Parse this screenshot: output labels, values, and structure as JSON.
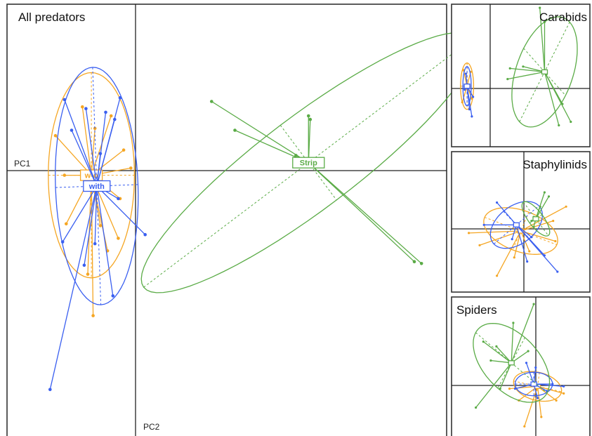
{
  "colors": {
    "Strip": "#5aab46",
    "with": "#3a5ff0",
    "w-o": "#f5a623",
    "frame": "#333333",
    "axis": "#222222"
  },
  "panels": [
    {
      "name": "All predators",
      "title": "All predators",
      "xlabel": "PC1",
      "ylabel": "PC2"
    },
    {
      "name": "Carabids",
      "title": "Carabids",
      "xlabel": "",
      "ylabel": ""
    },
    {
      "name": "Staphylinids",
      "title": "Staphylinids",
      "xlabel": "",
      "ylabel": ""
    },
    {
      "name": "Spiders",
      "title": "Spiders",
      "xlabel": "",
      "ylabel": ""
    }
  ],
  "chart_data": [
    {
      "panel": "All predators",
      "type": "scatter",
      "subtype": "PCA group ordination (star plot with inertia ellipses)",
      "title": "All predators",
      "xlabel": "PC1",
      "ylabel": "PC2",
      "xlim": [
        -7.5,
        17
      ],
      "ylim": [
        -14.5,
        9.6
      ],
      "grid": false,
      "legend": "none (groups labelled at centroids)",
      "series": [
        {
          "name": "Strip",
          "label": "Strip",
          "color_key": "Strip",
          "centroid": [
            9.3,
            0.8
          ],
          "ellipse": {
            "rx": 11.5,
            "ry": 2.6,
            "angle": 37
          },
          "points": [
            [
              3.9,
              4.2
            ],
            [
              5.2,
              2.6
            ],
            [
              9.3,
              3.4
            ],
            [
              9.4,
              3.2
            ],
            [
              8.9,
              1.0
            ],
            [
              8.6,
              1.2
            ],
            [
              15.2,
              -4.7
            ],
            [
              15.6,
              -4.8
            ]
          ]
        },
        {
          "name": "with",
          "label": "with",
          "color_key": "with",
          "centroid": [
            -2.5,
            -0.5
          ],
          "ellipse": {
            "rx": 2.3,
            "ry": 6.6,
            "angle": 2
          },
          "points": [
            [
              -4.3,
              4.3
            ],
            [
              -3.9,
              2.6
            ],
            [
              -2.0,
              3.6
            ],
            [
              -1.2,
              4.4
            ],
            [
              -1.5,
              3.2
            ],
            [
              -2.3,
              1.3
            ],
            [
              -3.1,
              3.8
            ],
            [
              0.2,
              -3.2
            ],
            [
              -1.3,
              -1.2
            ],
            [
              -2.6,
              -3.7
            ],
            [
              -3.2,
              -4.9
            ],
            [
              -4.4,
              -3.6
            ],
            [
              -1.6,
              -6.6
            ],
            [
              -5.1,
              -11.8
            ]
          ]
        },
        {
          "name": "w-o",
          "label": "w-o",
          "color_key": "w-o",
          "centroid": [
            -2.8,
            0.1
          ],
          "ellipse": {
            "rx": 2.4,
            "ry": 5.7,
            "angle": 0
          },
          "points": [
            [
              -4.8,
              2.3
            ],
            [
              -3.3,
              3.9
            ],
            [
              -2.6,
              2.7
            ],
            [
              -1.7,
              3.4
            ],
            [
              -1.0,
              1.5
            ],
            [
              -4.3,
              0.1
            ],
            [
              -0.6,
              0.5
            ],
            [
              -1.2,
              -1.2
            ],
            [
              -2.3,
              -2.7
            ],
            [
              -4.2,
              -2.6
            ],
            [
              -3.0,
              -5.4
            ],
            [
              -1.3,
              -3.4
            ],
            [
              -2.7,
              -7.7
            ],
            [
              -1.9,
              -4.1
            ]
          ]
        }
      ]
    },
    {
      "panel": "Carabids",
      "type": "scatter",
      "subtype": "PCA group ordination (star plot with inertia ellipses)",
      "title": "Carabids",
      "xlim": [
        -2.8,
        8.8
      ],
      "ylim": [
        -3.0,
        5.0
      ],
      "grid": false,
      "series": [
        {
          "name": "Strip",
          "color_key": "Strip",
          "centroid": [
            5.0,
            1.2
          ],
          "ellipse": {
            "rx": 3.5,
            "ry": 2.2,
            "angle": 53
          },
          "points": [
            [
              5.0,
              4.0
            ],
            [
              4.6,
              4.8
            ],
            [
              2.1,
              1.4
            ],
            [
              1.9,
              0.8
            ],
            [
              3.2,
              1.5
            ],
            [
              6.5,
              -0.6
            ],
            [
              7.2,
              -1.6
            ],
            [
              6.2,
              -1.8
            ]
          ]
        },
        {
          "name": "with",
          "color_key": "with",
          "centroid": [
            -1.5,
            0.4
          ],
          "ellipse": {
            "rx": 0.35,
            "ry": 1.1,
            "angle": 0
          },
          "points": [
            [
              -1.6,
              1.1
            ],
            [
              -1.3,
              -0.9
            ],
            [
              -1.0,
              -0.2
            ],
            [
              -1.7,
              0.2
            ],
            [
              -1.1,
              -1.3
            ]
          ]
        },
        {
          "name": "w-o",
          "color_key": "w-o",
          "centroid": [
            -1.5,
            0.4
          ],
          "ellipse": {
            "rx": 0.55,
            "ry": 1.3,
            "angle": 0
          },
          "points": [
            [
              -1.8,
              1.3
            ],
            [
              -1.2,
              1.2
            ],
            [
              -1.1,
              -0.3
            ],
            [
              -1.9,
              -0.5
            ]
          ]
        }
      ]
    },
    {
      "panel": "Staphylinids",
      "type": "scatter",
      "subtype": "PCA group ordination (star plot with inertia ellipses)",
      "title": "Staphylinids",
      "xlim": [
        -3.3,
        3.1
      ],
      "ylim": [
        -3.3,
        3.6
      ],
      "grid": false,
      "series": [
        {
          "name": "Strip",
          "color_key": "Strip",
          "centroid": [
            0.6,
            0.3
          ],
          "ellipse": {
            "rx": 1.0,
            "ry": 0.35,
            "angle": -55
          },
          "points": [
            [
              1.0,
              1.6
            ],
            [
              1.2,
              1.4
            ],
            [
              0.8,
              0.9
            ],
            [
              0.4,
              0.2
            ],
            [
              0.5,
              -0.1
            ]
          ]
        },
        {
          "name": "with",
          "color_key": "with",
          "centroid": [
            -0.3,
            0.0
          ],
          "ellipse": {
            "rx": 1.4,
            "ry": 0.9,
            "angle": 42
          },
          "points": [
            [
              -1.2,
              1.1
            ],
            [
              -1.8,
              0.0
            ],
            [
              0.4,
              -0.6
            ],
            [
              1.0,
              -1.5
            ],
            [
              0.2,
              -1.8
            ],
            [
              -0.5,
              -0.7
            ],
            [
              1.6,
              -2.3
            ]
          ]
        },
        {
          "name": "w-o",
          "color_key": "w-o",
          "centroid": [
            -0.1,
            -0.3
          ],
          "ellipse": {
            "rx": 1.8,
            "ry": 1.0,
            "angle": -22
          },
          "points": [
            [
              -2.5,
              -0.4
            ],
            [
              2.0,
              0.9
            ],
            [
              1.4,
              0.2
            ],
            [
              0.3,
              -1.3
            ],
            [
              -0.4,
              -1.6
            ],
            [
              -1.2,
              -2.5
            ],
            [
              1.5,
              -0.8
            ],
            [
              -2.0,
              -1.0
            ]
          ]
        }
      ]
    },
    {
      "panel": "Spiders",
      "type": "scatter",
      "subtype": "PCA group ordination (star plot with inertia ellipses)",
      "title": "Spiders",
      "xlim": [
        -4.2,
        3.2
      ],
      "ylim": [
        -2.5,
        3.5
      ],
      "grid": false,
      "series": [
        {
          "name": "Strip",
          "color_key": "Strip",
          "centroid": [
            -1.0,
            0.7
          ],
          "ellipse": {
            "rx": 2.3,
            "ry": 1.3,
            "angle": -34
          },
          "points": [
            [
              -2.5,
              1.6
            ],
            [
              -2.1,
              0.8
            ],
            [
              -1.8,
              1.4
            ],
            [
              -0.9,
              2.4
            ],
            [
              0.2,
              3.2
            ],
            [
              -2.9,
              -1.2
            ],
            [
              -1.6,
              -0.4
            ],
            [
              -0.1,
              1.2
            ]
          ]
        },
        {
          "name": "with",
          "color_key": "with",
          "centroid": [
            0.2,
            -0.2
          ],
          "ellipse": {
            "rx": 1.0,
            "ry": 0.5,
            "angle": 0
          },
          "points": [
            [
              -0.2,
              0.7
            ],
            [
              0.3,
              0.5
            ],
            [
              1.2,
              -0.2
            ],
            [
              0.9,
              -0.5
            ],
            [
              -0.8,
              -0.4
            ],
            [
              0.4,
              -0.8
            ],
            [
              1.8,
              -0.3
            ]
          ]
        },
        {
          "name": "w-o",
          "color_key": "w-o",
          "centroid": [
            0.4,
            -0.3
          ],
          "ellipse": {
            "rx": 1.3,
            "ry": 0.6,
            "angle": -10
          },
          "points": [
            [
              1.8,
              -0.6
            ],
            [
              -0.6,
              -0.9
            ],
            [
              0.6,
              -1.6
            ],
            [
              -0.3,
              -2.0
            ],
            [
              1.4,
              -0.9
            ],
            [
              -1.1,
              -0.4
            ]
          ]
        }
      ]
    }
  ]
}
